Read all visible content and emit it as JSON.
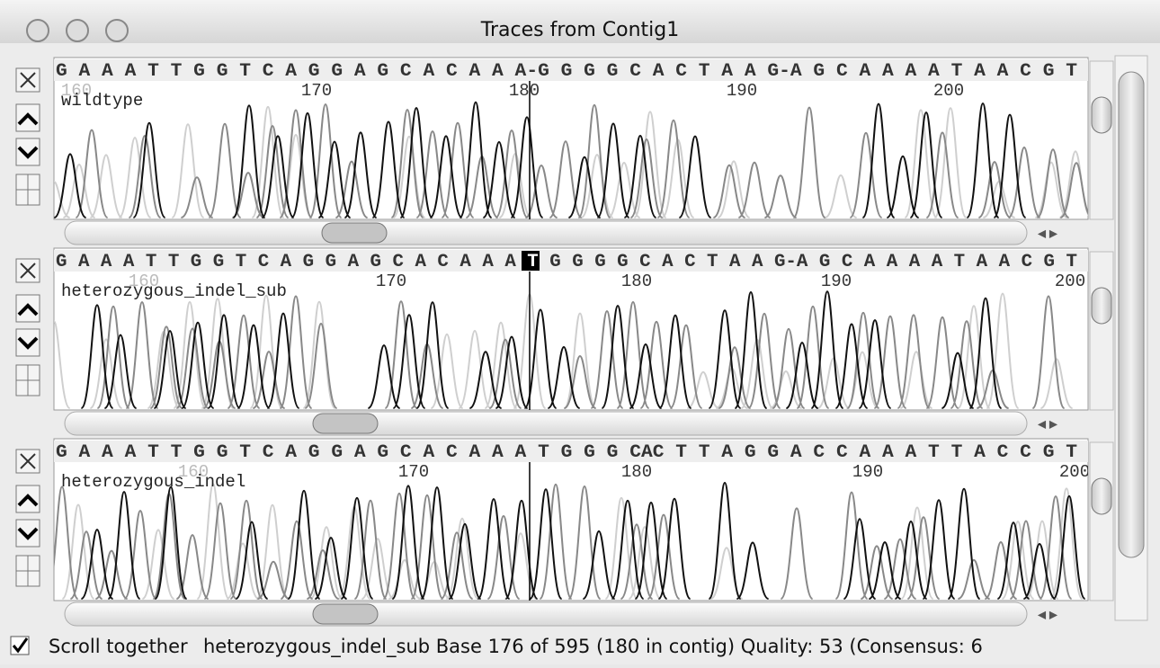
{
  "window": {
    "title": "Traces from Contig1"
  },
  "panels": [
    {
      "sequence": [
        "G A A A T T G G T C A G G A G C A C A A A-G G G G C A C T A A G-A G C A A A A T A A C G T"
      ],
      "label": "wildtype",
      "ruler": [
        "160",
        "170",
        "180",
        "190",
        "200"
      ]
    },
    {
      "sequence": [
        "G A A A T T G G T C A G G A G C A C A A A ",
        "T",
        " G G G G C A C T A A G-A G C A A A A T A A C G T"
      ],
      "label": "heterozygous_indel_sub",
      "ruler": [
        "160",
        "170",
        "180",
        "190",
        "200"
      ]
    },
    {
      "sequence": [
        "G A A A T T G G T C A G G A G C A C A A A T G G G CAC T T A G G A C C A A A T T A C C G T"
      ],
      "label": "heterozygous_indel",
      "ruler": [
        "160",
        "170",
        "180",
        "190",
        "200"
      ]
    }
  ],
  "status": {
    "checkbox": "Scroll together",
    "text": "heterozygous_indel_sub Base 176 of 595  (180 in contig) Quality: 53 (Consensus: 6"
  }
}
